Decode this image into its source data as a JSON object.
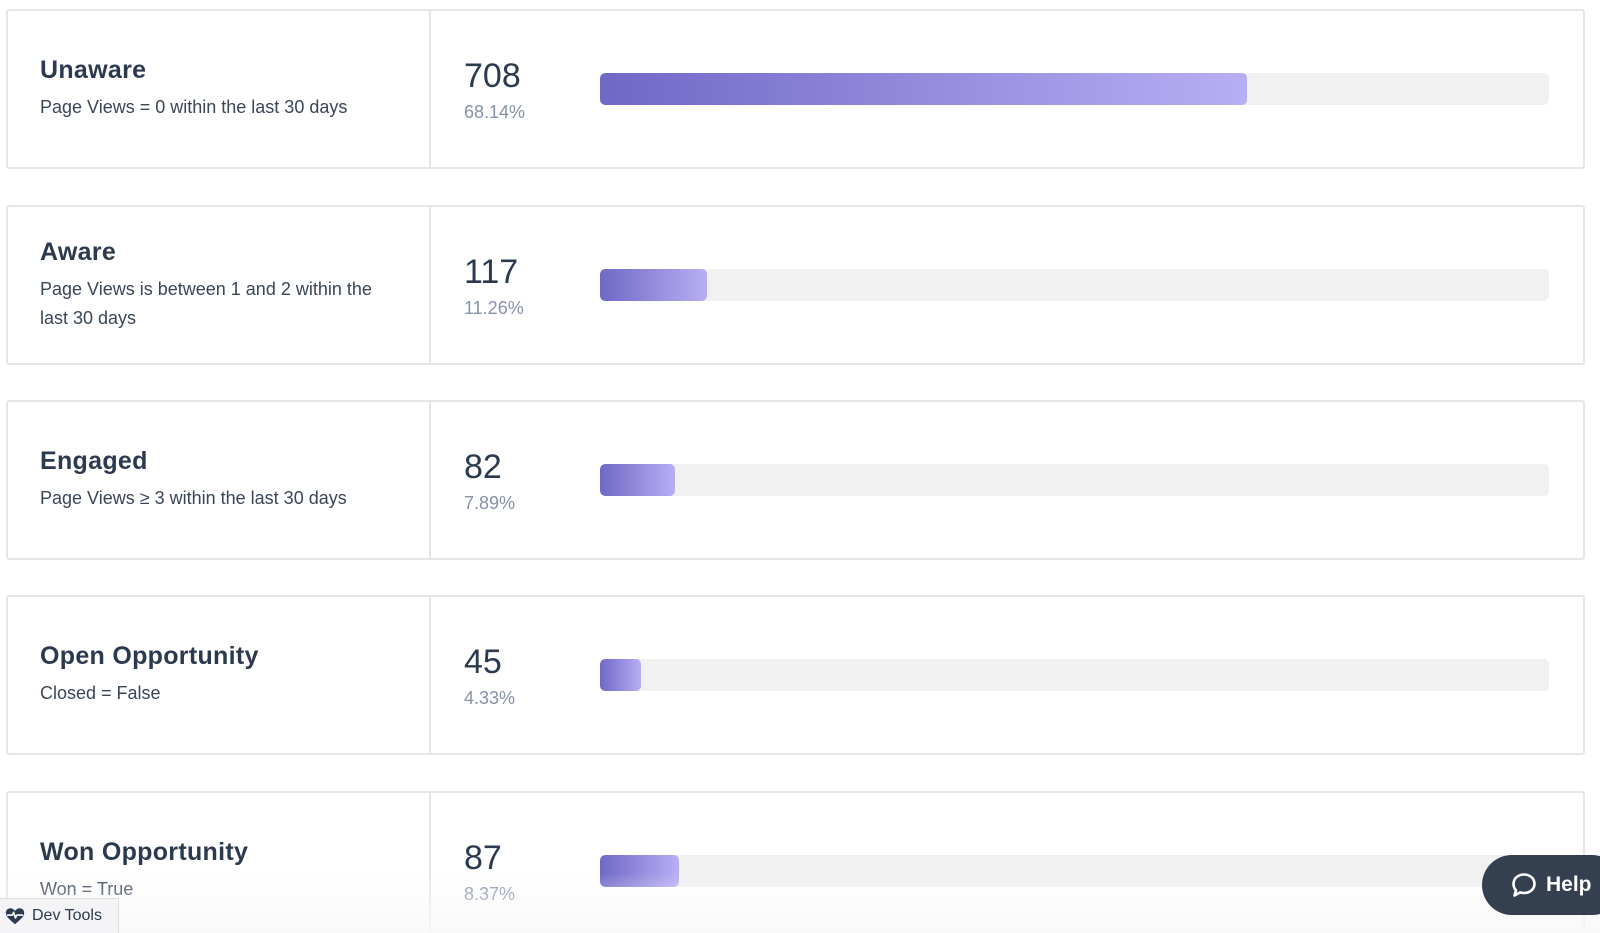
{
  "stages": [
    {
      "name": "Unaware",
      "description": "Page Views = 0 within the last 30 days",
      "count": "708",
      "percent": "68.14%",
      "fraction": 0.6814
    },
    {
      "name": "Aware",
      "description": "Page Views is between 1 and 2 within the last 30 days",
      "count": "117",
      "percent": "11.26%",
      "fraction": 0.1126
    },
    {
      "name": "Engaged",
      "description": "Page Views ≥ 3 within the last 30 days",
      "count": "82",
      "percent": "7.89%",
      "fraction": 0.0789
    },
    {
      "name": "Open Opportunity",
      "description": "Closed = False",
      "count": "45",
      "percent": "4.33%",
      "fraction": 0.0433
    },
    {
      "name": "Won Opportunity",
      "description": "Won = True",
      "count": "87",
      "percent": "8.37%",
      "fraction": 0.0837
    }
  ],
  "dev_tools": {
    "label": "Dev Tools",
    "icon": "heart-pulse-icon"
  },
  "help": {
    "label": "Help",
    "icon": "chat-bubble-icon"
  },
  "colors": {
    "bar_start": "#7068c6",
    "bar_end": "#b8aef4",
    "track": "#f1f1f2",
    "help_bg": "#34404f"
  }
}
